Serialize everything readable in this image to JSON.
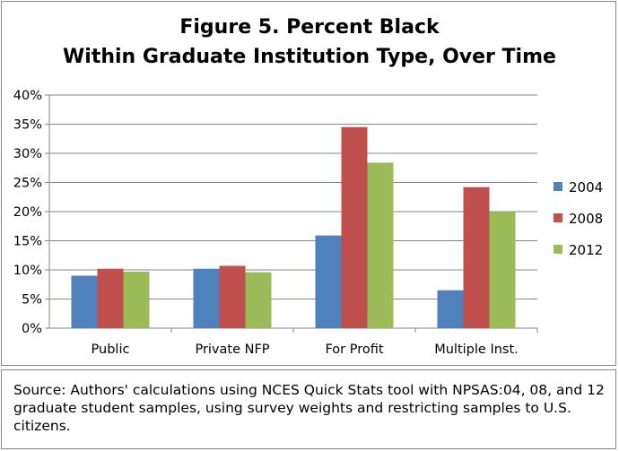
{
  "title_line1": "Figure 5. Percent Black",
  "title_line2": "Within Graduate Institution Type, Over Time",
  "source_note": "Source: Authors' calculations using NCES Quick Stats tool with NPSAS:04, 08, and 12 graduate student samples, using survey weights and restricting samples to U.S. citizens.",
  "chart_data": {
    "type": "bar",
    "title": "Figure 5. Percent Black Within Graduate Institution Type, Over Time",
    "categories": [
      "Public",
      "Private NFP",
      "For Profit",
      "Multiple Inst."
    ],
    "series": [
      {
        "name": "2004",
        "color": "#4F81BD",
        "values": [
          0.09,
          0.102,
          0.159,
          0.065
        ]
      },
      {
        "name": "2008",
        "color": "#C0504D",
        "values": [
          0.102,
          0.107,
          0.345,
          0.242
        ]
      },
      {
        "name": "2012",
        "color": "#9BBB59",
        "values": [
          0.097,
          0.096,
          0.284,
          0.2
        ]
      }
    ],
    "y_ticks": [
      "0%",
      "5%",
      "10%",
      "15%",
      "20%",
      "25%",
      "30%",
      "35%",
      "40%"
    ],
    "ylim": [
      0,
      0.4
    ],
    "grid": true,
    "legend_position": "right"
  }
}
